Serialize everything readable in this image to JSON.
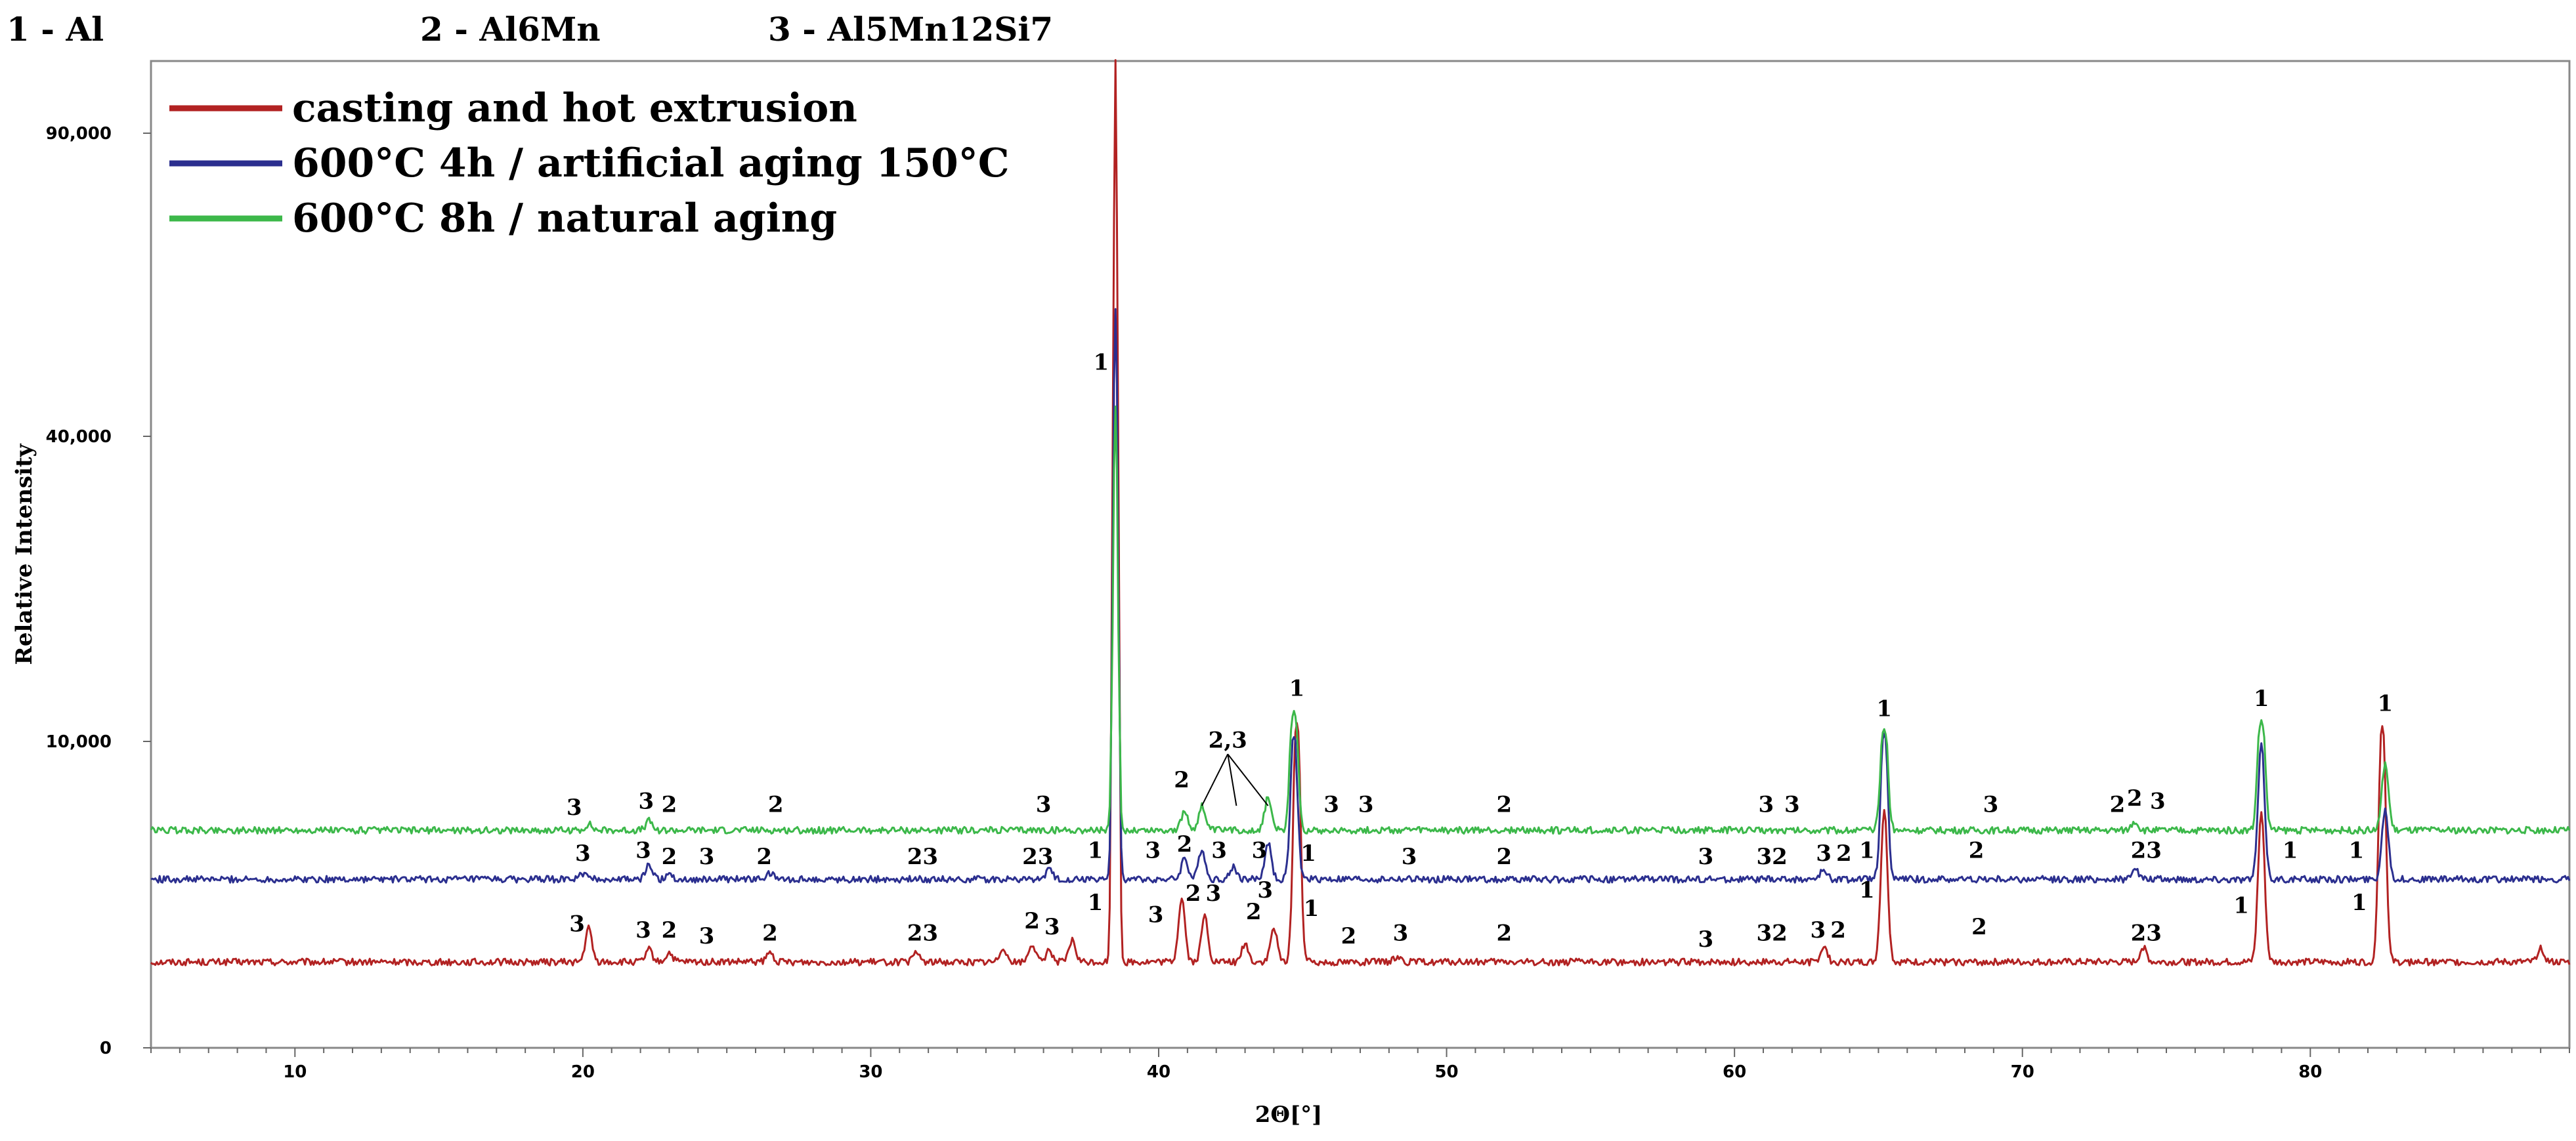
{
  "phase_key": [
    {
      "number": "1",
      "name": "Al"
    },
    {
      "number": "2",
      "name": "Al6Mn"
    },
    {
      "number": "3",
      "name": "Al5Mn12Si7"
    }
  ],
  "chart_data": {
    "type": "line",
    "xlabel": "2Θ[°]",
    "ylabel": "Relative Intensity",
    "xlim": [
      5,
      89
    ],
    "ylim": [
      0,
      97000
    ],
    "x_ticks": [
      10,
      20,
      30,
      40,
      50,
      60,
      70,
      80
    ],
    "y_tick_labels": [
      {
        "value": 0,
        "label": "0"
      },
      {
        "value": 10000,
        "label": "10,000"
      },
      {
        "value": 40000,
        "label": "40,000"
      },
      {
        "value": 90000,
        "label": "90,000"
      }
    ],
    "legend_position": "top-left",
    "series": [
      {
        "name": "casting and hot extrusion",
        "color": "#b22222",
        "baseline": 2800,
        "peaks": [
          {
            "x": 20.2,
            "y": 3900
          },
          {
            "x": 22.3,
            "y": 3200
          },
          {
            "x": 23.0,
            "y": 3100
          },
          {
            "x": 26.5,
            "y": 3100
          },
          {
            "x": 31.6,
            "y": 3100
          },
          {
            "x": 34.6,
            "y": 3300
          },
          {
            "x": 35.6,
            "y": 3400
          },
          {
            "x": 36.2,
            "y": 3200
          },
          {
            "x": 37.0,
            "y": 3500
          },
          {
            "x": 38.5,
            "y": 97000
          },
          {
            "x": 40.8,
            "y": 4900
          },
          {
            "x": 41.6,
            "y": 4300
          },
          {
            "x": 43.0,
            "y": 3400
          },
          {
            "x": 44.0,
            "y": 3900
          },
          {
            "x": 44.8,
            "y": 11800
          },
          {
            "x": 48.3,
            "y": 3000
          },
          {
            "x": 63.1,
            "y": 3300
          },
          {
            "x": 65.2,
            "y": 7800
          },
          {
            "x": 74.2,
            "y": 3300
          },
          {
            "x": 78.3,
            "y": 7700
          },
          {
            "x": 82.5,
            "y": 11500
          },
          {
            "x": 88.0,
            "y": 3300
          }
        ]
      },
      {
        "name": "600°C 4h / artificial aging 150°C",
        "color": "#2b2f8f",
        "baseline": 5500,
        "peaks": [
          {
            "x": 20.0,
            "y": 5700
          },
          {
            "x": 22.3,
            "y": 6000
          },
          {
            "x": 23.0,
            "y": 5700
          },
          {
            "x": 26.5,
            "y": 5700
          },
          {
            "x": 36.2,
            "y": 5800
          },
          {
            "x": 38.5,
            "y": 61000
          },
          {
            "x": 40.9,
            "y": 6200
          },
          {
            "x": 41.5,
            "y": 6500
          },
          {
            "x": 42.6,
            "y": 5900
          },
          {
            "x": 43.8,
            "y": 6700
          },
          {
            "x": 44.7,
            "y": 10500
          },
          {
            "x": 63.1,
            "y": 5800
          },
          {
            "x": 65.2,
            "y": 10800
          },
          {
            "x": 73.9,
            "y": 5900
          },
          {
            "x": 78.3,
            "y": 9900
          },
          {
            "x": 82.6,
            "y": 7800
          }
        ]
      },
      {
        "name": "600°C 8h / natural aging",
        "color": "#3cb84a",
        "baseline": 7100,
        "peaks": [
          {
            "x": 20.2,
            "y": 7300
          },
          {
            "x": 22.3,
            "y": 7400
          },
          {
            "x": 38.5,
            "y": 45000
          },
          {
            "x": 40.9,
            "y": 7700
          },
          {
            "x": 41.5,
            "y": 7900
          },
          {
            "x": 43.8,
            "y": 8200
          },
          {
            "x": 44.7,
            "y": 13000
          },
          {
            "x": 65.2,
            "y": 11200
          },
          {
            "x": 73.9,
            "y": 7400
          },
          {
            "x": 78.3,
            "y": 12000
          },
          {
            "x": 82.6,
            "y": 9300
          }
        ]
      }
    ],
    "annotations": [
      {
        "text": "1",
        "x": 38.0,
        "y": 51000
      },
      {
        "text": "1",
        "x": 44.8,
        "y": 14500
      },
      {
        "text": "1",
        "x": 65.2,
        "y": 12500
      },
      {
        "text": "1",
        "x": 78.3,
        "y": 13500
      },
      {
        "text": "1",
        "x": 82.6,
        "y": 13000
      },
      {
        "text": "2,3",
        "x": 42.4,
        "y": 9800
      },
      {
        "text": "3",
        "x": 19.7,
        "y": 7600
      },
      {
        "text": "3",
        "x": 22.2,
        "y": 7800
      },
      {
        "text": "2",
        "x": 23.0,
        "y": 7700
      },
      {
        "text": "2",
        "x": 26.7,
        "y": 7700
      },
      {
        "text": "3",
        "x": 36.0,
        "y": 7700
      },
      {
        "text": "2",
        "x": 40.8,
        "y": 8500
      },
      {
        "text": "3",
        "x": 46.0,
        "y": 7700
      },
      {
        "text": "3",
        "x": 47.2,
        "y": 7700
      },
      {
        "text": "2",
        "x": 52.0,
        "y": 7700
      },
      {
        "text": "3",
        "x": 61.1,
        "y": 7700
      },
      {
        "text": "3",
        "x": 62.0,
        "y": 7700
      },
      {
        "text": "3",
        "x": 68.9,
        "y": 7700
      },
      {
        "text": "2",
        "x": 73.3,
        "y": 7700
      },
      {
        "text": "2",
        "x": 73.9,
        "y": 7900
      },
      {
        "text": "3",
        "x": 74.7,
        "y": 7800
      },
      {
        "text": "3",
        "x": 20.0,
        "y": 6100
      },
      {
        "text": "3",
        "x": 22.1,
        "y": 6200
      },
      {
        "text": "2",
        "x": 23.0,
        "y": 6000
      },
      {
        "text": "3",
        "x": 24.3,
        "y": 6000
      },
      {
        "text": "2",
        "x": 26.3,
        "y": 6000
      },
      {
        "text": "23",
        "x": 31.8,
        "y": 6000
      },
      {
        "text": "23",
        "x": 35.8,
        "y": 6000
      },
      {
        "text": "1",
        "x": 37.8,
        "y": 6200
      },
      {
        "text": "3",
        "x": 39.8,
        "y": 6200
      },
      {
        "text": "2",
        "x": 40.9,
        "y": 6400
      },
      {
        "text": "3",
        "x": 42.1,
        "y": 6200
      },
      {
        "text": "3",
        "x": 43.5,
        "y": 6200
      },
      {
        "text": "1",
        "x": 45.2,
        "y": 6100
      },
      {
        "text": "3",
        "x": 48.7,
        "y": 6000
      },
      {
        "text": "2",
        "x": 52.0,
        "y": 6000
      },
      {
        "text": "3",
        "x": 59.0,
        "y": 6000
      },
      {
        "text": "32",
        "x": 61.3,
        "y": 6000
      },
      {
        "text": "3",
        "x": 63.1,
        "y": 6100
      },
      {
        "text": "2",
        "x": 63.8,
        "y": 6100
      },
      {
        "text": "1",
        "x": 64.6,
        "y": 6200
      },
      {
        "text": "2",
        "x": 68.4,
        "y": 6200
      },
      {
        "text": "23",
        "x": 74.3,
        "y": 6200
      },
      {
        "text": "1",
        "x": 79.3,
        "y": 6200
      },
      {
        "text": "1",
        "x": 81.6,
        "y": 6200
      },
      {
        "text": "3",
        "x": 19.8,
        "y": 3800
      },
      {
        "text": "3",
        "x": 22.1,
        "y": 3600
      },
      {
        "text": "2",
        "x": 23.0,
        "y": 3600
      },
      {
        "text": "3",
        "x": 24.3,
        "y": 3400
      },
      {
        "text": "2",
        "x": 26.5,
        "y": 3500
      },
      {
        "text": "23",
        "x": 31.8,
        "y": 3500
      },
      {
        "text": "2",
        "x": 35.6,
        "y": 3900
      },
      {
        "text": "3",
        "x": 36.3,
        "y": 3700
      },
      {
        "text": "1",
        "x": 37.8,
        "y": 4500
      },
      {
        "text": "3",
        "x": 39.9,
        "y": 4100
      },
      {
        "text": "2",
        "x": 41.2,
        "y": 4800
      },
      {
        "text": "3",
        "x": 41.9,
        "y": 4800
      },
      {
        "text": "2",
        "x": 43.3,
        "y": 4200
      },
      {
        "text": "3",
        "x": 43.7,
        "y": 4900
      },
      {
        "text": "1",
        "x": 45.3,
        "y": 4300
      },
      {
        "text": "2",
        "x": 46.6,
        "y": 3400
      },
      {
        "text": "3",
        "x": 48.4,
        "y": 3500
      },
      {
        "text": "2",
        "x": 52.0,
        "y": 3500
      },
      {
        "text": "3",
        "x": 59.0,
        "y": 3300
      },
      {
        "text": "32",
        "x": 61.3,
        "y": 3500
      },
      {
        "text": "3",
        "x": 62.9,
        "y": 3600
      },
      {
        "text": "2",
        "x": 63.6,
        "y": 3600
      },
      {
        "text": "1",
        "x": 64.6,
        "y": 4900
      },
      {
        "text": "2",
        "x": 68.5,
        "y": 3700
      },
      {
        "text": "23",
        "x": 74.3,
        "y": 3500
      },
      {
        "text": "1",
        "x": 77.6,
        "y": 4400
      },
      {
        "text": "1",
        "x": 81.7,
        "y": 4500
      }
    ]
  }
}
